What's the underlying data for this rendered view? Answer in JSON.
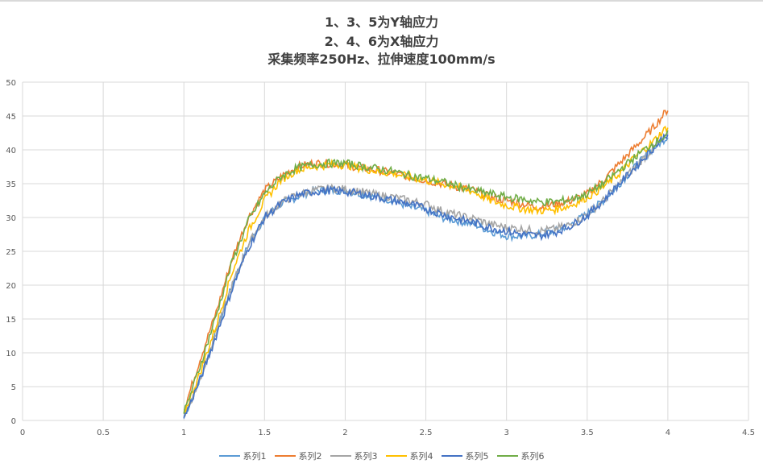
{
  "chart_data": {
    "type": "line",
    "title_lines": [
      "1、3、5为Y轴应力",
      "2、4、6为X轴应力",
      "采集频率250Hz、拉伸速度100mm/s"
    ],
    "xlabel": "",
    "ylabel": "",
    "xlim": [
      0,
      4.5
    ],
    "ylim": [
      0,
      50
    ],
    "xticks": [
      "0",
      "0.5",
      "1",
      "1.5",
      "2",
      "2.5",
      "3",
      "3.5",
      "4",
      "4.5"
    ],
    "yticks": [
      "0",
      "5",
      "10",
      "15",
      "20",
      "25",
      "30",
      "35",
      "40",
      "45",
      "50"
    ],
    "grid": true,
    "legend": "bottom",
    "x_start": 1,
    "x_step": 0.1,
    "series": [
      {
        "name": "系列1",
        "color": "#5B9BD5",
        "values": [
          0.5,
          6,
          13,
          20,
          26,
          30,
          32,
          33,
          34,
          34,
          34,
          33.5,
          33,
          32.5,
          31.5,
          31,
          30,
          29.5,
          29,
          28,
          27.3,
          27.2,
          27.5,
          28,
          29,
          30.5,
          32.5,
          35,
          37.5,
          40,
          42
        ]
      },
      {
        "name": "系列2",
        "color": "#ED7D31",
        "values": [
          1.5,
          9,
          16,
          24,
          30,
          34,
          36,
          37.5,
          38,
          38,
          37.8,
          37.3,
          37,
          36.5,
          36,
          35.5,
          35,
          34.5,
          34,
          33,
          32.5,
          32,
          31.5,
          32,
          32.5,
          33.5,
          35.5,
          38,
          40.5,
          43,
          46
        ]
      },
      {
        "name": "系列3",
        "color": "#A5A5A5",
        "values": [
          0.5,
          6,
          13,
          20,
          26,
          30,
          32.2,
          33.3,
          34,
          34.3,
          34.2,
          33.8,
          33.3,
          33,
          32.5,
          32,
          31,
          30.3,
          29.8,
          29,
          28.5,
          28.3,
          28,
          28.3,
          29,
          30.5,
          32.5,
          35,
          37.5,
          40,
          42
        ]
      },
      {
        "name": "系列4",
        "color": "#FFC000",
        "values": [
          1,
          7,
          14,
          22,
          28,
          32.5,
          35.5,
          37,
          37.5,
          37.8,
          37.8,
          37.3,
          36.8,
          36.5,
          36,
          35.5,
          35,
          34.5,
          33.8,
          32.5,
          31.8,
          31.3,
          31,
          31.2,
          31.8,
          33,
          34.5,
          36.5,
          39,
          41,
          43.5
        ]
      },
      {
        "name": "系列5",
        "color": "#4472C4",
        "values": [
          0.3,
          6,
          12.5,
          19.5,
          25.5,
          30,
          32,
          33.2,
          33.8,
          34,
          33.8,
          33.5,
          33,
          32.5,
          32,
          31.3,
          30.5,
          29.8,
          29.2,
          28.5,
          28,
          27.5,
          27.3,
          27.8,
          28.8,
          30.3,
          32.5,
          35,
          37.5,
          40,
          42.5
        ]
      },
      {
        "name": "系列6",
        "color": "#70AD47",
        "values": [
          1,
          8,
          15.5,
          23.5,
          29.5,
          33.5,
          36,
          37.3,
          37.8,
          38,
          38,
          37.6,
          37.2,
          36.8,
          36.2,
          35.8,
          35.3,
          34.6,
          34,
          33.5,
          33,
          32.7,
          32.3,
          32.3,
          32.7,
          33.5,
          35,
          37,
          39,
          40.8,
          42.3
        ]
      }
    ]
  }
}
